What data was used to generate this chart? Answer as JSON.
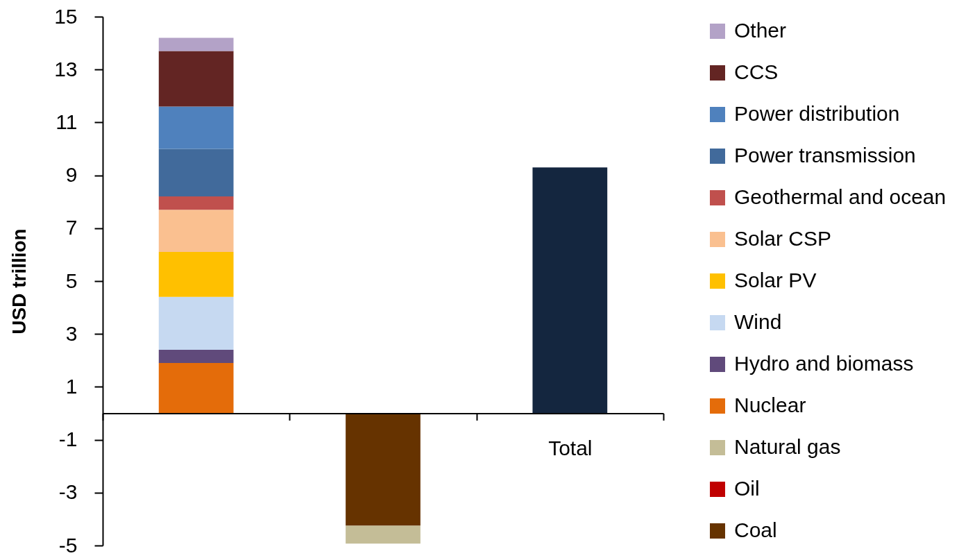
{
  "chart_data": {
    "type": "bar",
    "stacked": true,
    "categories": [
      null,
      null,
      "Total"
    ],
    "ylabel": "USD trillion",
    "ylim": [
      -5,
      15
    ],
    "yticks": [
      -5,
      -3,
      -1,
      1,
      3,
      5,
      7,
      9,
      11,
      13,
      15
    ],
    "legend": "right",
    "series": [
      {
        "name": "Coal",
        "color": "#663300",
        "values": [
          null,
          -4.25,
          null
        ]
      },
      {
        "name": "Oil",
        "color": "#c00000",
        "values": [
          null,
          null,
          null
        ]
      },
      {
        "name": "Natural gas",
        "color": "#c4bd97",
        "values": [
          null,
          -0.68,
          null
        ]
      },
      {
        "name": "Nuclear",
        "color": "#e46c0a",
        "values": [
          1.9,
          null,
          null
        ]
      },
      {
        "name": "Hydro and biomass",
        "color": "#604a7b",
        "values": [
          0.5,
          null,
          null
        ]
      },
      {
        "name": "Wind",
        "color": "#c6d9f1",
        "values": [
          2.0,
          null,
          null
        ]
      },
      {
        "name": "Solar PV",
        "color": "#ffc000",
        "values": [
          1.7,
          null,
          null
        ]
      },
      {
        "name": "Solar CSP",
        "color": "#fac090",
        "values": [
          1.6,
          null,
          null
        ]
      },
      {
        "name": "Geothermal and ocean",
        "color": "#c0504d",
        "values": [
          0.5,
          null,
          null
        ]
      },
      {
        "name": "Power transmission",
        "color": "#416a9b",
        "values": [
          1.8,
          null,
          null
        ]
      },
      {
        "name": "Power distribution",
        "color": "#4f81bd",
        "values": [
          1.6,
          null,
          null
        ]
      },
      {
        "name": "CCS",
        "color": "#632523",
        "values": [
          2.1,
          null,
          null
        ]
      },
      {
        "name": "Other",
        "color": "#b3a2c7",
        "values": [
          0.5,
          null,
          null
        ]
      },
      {
        "color": "#14263f",
        "values": [
          null,
          null,
          9.3
        ]
      }
    ]
  }
}
